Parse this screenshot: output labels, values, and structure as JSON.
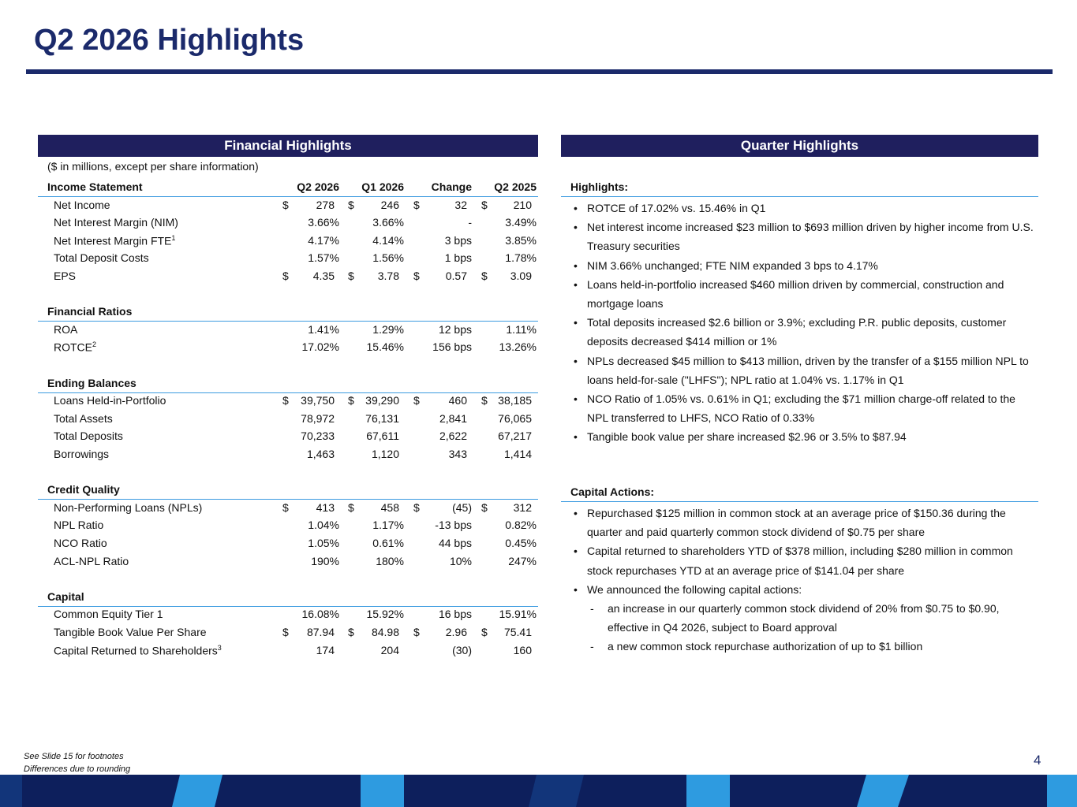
{
  "title": "Q2 2026 Highlights",
  "financial": {
    "header": "Financial Highlights",
    "note": "($ in millions, except per share information)",
    "columns": [
      "Q2 2026",
      "Q1 2026",
      "Change",
      "Q2 2025"
    ],
    "sections": [
      {
        "title": "Income Statement",
        "rows": [
          {
            "label": "Net Income",
            "cells": [
              [
                "$",
                "278"
              ],
              [
                "$",
                "246"
              ],
              [
                "$",
                "32"
              ],
              [
                "$",
                "210"
              ]
            ]
          },
          {
            "label": "Net Interest Margin (NIM)",
            "cells": [
              [
                "3.66%"
              ],
              [
                "3.66%"
              ],
              [
                "-"
              ],
              [
                "3.49%"
              ]
            ]
          },
          {
            "label": "Net Interest Margin FTE",
            "sup": "1",
            "cells": [
              [
                "4.17%"
              ],
              [
                "4.14%"
              ],
              [
                "3 bps"
              ],
              [
                "3.85%"
              ]
            ]
          },
          {
            "label": "Total Deposit Costs",
            "cells": [
              [
                "1.57%"
              ],
              [
                "1.56%"
              ],
              [
                "1 bps"
              ],
              [
                "1.78%"
              ]
            ]
          },
          {
            "label": "EPS",
            "cells": [
              [
                "$",
                "4.35"
              ],
              [
                "$",
                "3.78"
              ],
              [
                "$",
                "0.57"
              ],
              [
                "$",
                "3.09"
              ]
            ]
          }
        ]
      },
      {
        "title": "Financial Ratios",
        "rows": [
          {
            "label": "ROA",
            "cells": [
              [
                "1.41%"
              ],
              [
                "1.29%"
              ],
              [
                "12 bps"
              ],
              [
                "1.11%"
              ]
            ]
          },
          {
            "label": "ROTCE",
            "sup": "2",
            "cells": [
              [
                "17.02%"
              ],
              [
                "15.46%"
              ],
              [
                "156 bps"
              ],
              [
                "13.26%"
              ]
            ]
          }
        ]
      },
      {
        "title": "Ending Balances",
        "rows": [
          {
            "label": "Loans Held-in-Portfolio",
            "cells": [
              [
                "$",
                "39,750"
              ],
              [
                "$",
                "39,290"
              ],
              [
                "$",
                "460"
              ],
              [
                "$",
                "38,185"
              ]
            ]
          },
          {
            "label": "Total Assets",
            "cells": [
              [
                "78,972"
              ],
              [
                "76,131"
              ],
              [
                "2,841"
              ],
              [
                "76,065"
              ]
            ]
          },
          {
            "label": "Total Deposits",
            "cells": [
              [
                "70,233"
              ],
              [
                "67,611"
              ],
              [
                "2,622"
              ],
              [
                "67,217"
              ]
            ]
          },
          {
            "label": "Borrowings",
            "cells": [
              [
                "1,463"
              ],
              [
                "1,120"
              ],
              [
                "343"
              ],
              [
                "1,414"
              ]
            ]
          }
        ]
      },
      {
        "title": "Credit Quality",
        "rows": [
          {
            "label": "Non-Performing Loans (NPLs)",
            "cells": [
              [
                "$",
                "413"
              ],
              [
                "$",
                "458"
              ],
              [
                "$",
                "(45)"
              ],
              [
                "$",
                "312"
              ]
            ]
          },
          {
            "label": "NPL Ratio",
            "cells": [
              [
                "1.04%"
              ],
              [
                "1.17%"
              ],
              [
                "-13 bps"
              ],
              [
                "0.82%"
              ]
            ]
          },
          {
            "label": "NCO Ratio",
            "cells": [
              [
                "1.05%"
              ],
              [
                "0.61%"
              ],
              [
                "44 bps"
              ],
              [
                "0.45%"
              ]
            ]
          },
          {
            "label": "ACL-NPL Ratio",
            "cells": [
              [
                "190%"
              ],
              [
                "180%"
              ],
              [
                "10%"
              ],
              [
                "247%"
              ]
            ]
          }
        ]
      },
      {
        "title": "Capital",
        "rows": [
          {
            "label": "Common Equity Tier 1",
            "cells": [
              [
                "16.08%"
              ],
              [
                "15.92%"
              ],
              [
                "16 bps"
              ],
              [
                "15.91%"
              ]
            ]
          },
          {
            "label": "Tangible Book Value Per Share",
            "cells": [
              [
                "$",
                "87.94"
              ],
              [
                "$",
                "84.98"
              ],
              [
                "$",
                "2.96"
              ],
              [
                "$",
                "75.41"
              ]
            ]
          },
          {
            "label": "Capital Returned to Shareholders",
            "sup": "3",
            "cells": [
              [
                "174"
              ],
              [
                "204"
              ],
              [
                "(30)"
              ],
              [
                "160"
              ]
            ]
          }
        ]
      }
    ]
  },
  "quarter": {
    "header": "Quarter Highlights",
    "sections": [
      {
        "title": "Highlights:",
        "bullets": [
          {
            "text": "ROTCE of 17.02% vs. 15.46% in Q1"
          },
          {
            "text": "Net interest income increased $23 million to $693 million driven by higher income from U.S. Treasury securities"
          },
          {
            "text": "NIM 3.66% unchanged; FTE NIM expanded 3 bps to 4.17%"
          },
          {
            "text": "Loans held-in-portfolio increased $460 million driven by commercial, construction and mortgage loans"
          },
          {
            "text": "Total deposits increased $2.6 billion or 3.9%; excluding P.R. public deposits, customer deposits decreased $414 million or 1%"
          },
          {
            "text": "NPLs decreased $45 million to $413 million, driven by the transfer of a $155 million NPL to loans held-for-sale (\"LHFS\"); NPL ratio at 1.04% vs. 1.17% in Q1"
          },
          {
            "text": "NCO Ratio of 1.05% vs. 0.61% in Q1; excluding the $71 million charge-off related to the NPL transferred to LHFS, NCO Ratio of 0.33%"
          },
          {
            "text": "Tangible book value per share increased $2.96 or 3.5% to $87.94"
          }
        ]
      },
      {
        "title": "Capital Actions:",
        "bullets": [
          {
            "text": "Repurchased $125 million in common stock at an average price of $150.36 during the quarter and paid quarterly common stock dividend of $0.75 per share"
          },
          {
            "text": "Capital returned to shareholders YTD of $378 million, including $280 million in common stock repurchases YTD at an average price of $141.04 per share"
          },
          {
            "text": "We announced the following capital actions:",
            "sub": [
              "an increase in our quarterly common stock dividend of 20% from $0.75 to $0.90, effective in Q4 2026, subject to Board approval",
              "a new common stock repurchase authorization of up to $1 billion"
            ]
          }
        ]
      }
    ]
  },
  "footer": {
    "notes": [
      "See Slide 15 for footnotes",
      "Differences due to rounding"
    ],
    "page": "4"
  }
}
